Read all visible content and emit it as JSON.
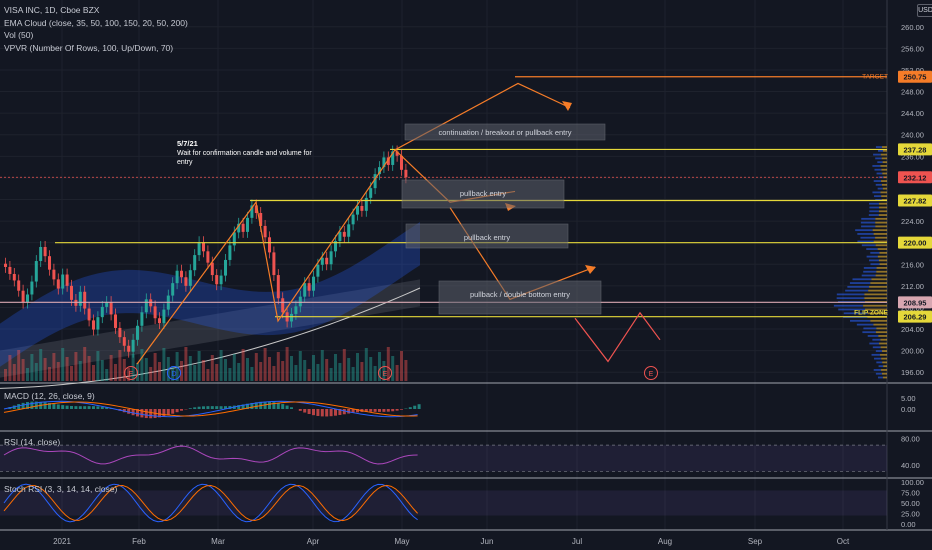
{
  "header": {
    "symbol_line": "VISA INC, 1D, Cboe BZX",
    "indicators": [
      "EMA Cloud (close, 35, 50, 100, 150, 20, 50, 200)",
      "Vol (50)",
      "VPVR (Number Of Rows, 100, Up/Down, 70)"
    ],
    "currency": "USD"
  },
  "annotation_note": {
    "line1": "5/7/21",
    "line2": "Wait for confirmation candle and volume for",
    "line3": "entry"
  },
  "zones": [
    {
      "label": "continuation / breakout or pullback entry"
    },
    {
      "label": "pullback entry"
    },
    {
      "label": "pullback entry"
    },
    {
      "label": "pullback / double bottom entry"
    }
  ],
  "earnings_markers": [
    "E",
    "D",
    "E",
    "E"
  ],
  "level_labels": {
    "target": "TARGET",
    "flip_zone": "FLIP ZONE"
  },
  "chart_data": [
    {
      "type": "candlestick",
      "title": "VISA INC, 1D, Cboe BZX",
      "x_labels": [
        "2021",
        "Feb",
        "Mar",
        "Apr",
        "May",
        "Jun",
        "Jul",
        "Aug",
        "Sep",
        "Oct"
      ],
      "y_ticks": [
        196,
        200,
        204,
        208,
        212,
        216,
        220,
        224,
        228,
        232,
        236,
        240,
        244,
        248,
        252,
        256,
        260
      ],
      "ylim": [
        192,
        264
      ],
      "price_levels": [
        {
          "value": 250.75,
          "label": "250.75",
          "name": "TARGET",
          "color": "#f57c28"
        },
        {
          "value": 237.28,
          "label": "237.28",
          "color": "#e5d83a"
        },
        {
          "value": 232.12,
          "label": "232.12",
          "color": "#ef5350"
        },
        {
          "value": 227.82,
          "label": "227.82",
          "color": "#e5d83a"
        },
        {
          "value": 220.0,
          "label": "220.00",
          "color": "#e5d83a"
        },
        {
          "value": 208.95,
          "label": "208.95",
          "color": "#d8a7b1"
        },
        {
          "value": 206.29,
          "label": "206.29",
          "name": "FLIP ZONE",
          "color": "#e5d83a"
        }
      ],
      "ohlc_path_close": [
        215.5,
        214.2,
        213.0,
        211.1,
        208.9,
        210.4,
        212.8,
        216.6,
        219.2,
        217.5,
        215.0,
        213.2,
        211.5,
        214.1,
        212.0,
        209.4,
        208.3,
        210.9,
        207.8,
        205.6,
        203.9,
        206.2,
        208.1,
        209.0,
        206.7,
        204.2,
        202.5,
        200.9,
        199.8,
        202.0,
        204.6,
        207.1,
        209.5,
        208.2,
        206.0,
        205.1,
        207.6,
        210.2,
        212.5,
        214.8,
        213.6,
        212.0,
        214.9,
        217.7,
        220.1,
        218.4,
        216.3,
        214.0,
        212.3,
        213.9,
        216.8,
        219.5,
        221.9,
        223.5,
        222.0,
        224.6,
        226.9,
        225.5,
        223.1,
        221.0,
        218.2,
        214.0,
        209.7,
        207.1,
        205.4,
        206.8,
        208.2,
        210.0,
        212.5,
        211.1,
        213.7,
        215.9,
        217.2,
        216.0,
        218.4,
        220.3,
        222.0,
        221.1,
        223.4,
        225.2,
        226.8,
        225.9,
        228.3,
        230.1,
        232.7,
        234.0,
        235.8,
        234.4,
        236.9,
        236.1,
        233.5,
        232.12
      ],
      "annotation_path_up": [
        [
          197.5,
          0
        ],
        [
          227.5,
          28
        ],
        [
          205.5,
          42
        ],
        [
          237.2,
          72
        ],
        [
          249.5,
          90
        ],
        [
          245.0,
          100
        ]
      ],
      "scenario_paths": [
        {
          "points": [
            [
              237.2,
              0
            ],
            [
              227.5,
              12
            ],
            [
              229.5,
              20
            ]
          ]
        },
        {
          "points": [
            [
              226.5,
              0
            ],
            [
              209.5,
              10
            ],
            [
              215.5,
              18
            ]
          ]
        },
        {
          "points": [
            [
              206.0,
              0
            ],
            [
              198.0,
              6
            ],
            [
              207.0,
              14
            ],
            [
              202.0,
              18
            ]
          ]
        }
      ],
      "volume_panel": {
        "title": "Vol (50)"
      },
      "sub_panels": [
        {
          "title": "MACD (12, 26, close, 9)",
          "y_ticks": [
            5.0,
            0.0
          ],
          "ylim": [
            -6,
            8
          ]
        },
        {
          "title": "RSI (14, close)",
          "y_ticks": [
            80.0,
            40.0
          ],
          "ylim": [
            20,
            90
          ]
        },
        {
          "title": "Stoch RSI (3, 3, 14, 14, close)",
          "y_ticks": [
            100.0,
            75.0,
            50.0,
            25.0,
            0.0
          ],
          "ylim": [
            -5,
            105
          ]
        }
      ]
    }
  ],
  "colors": {
    "background": "#131722",
    "grid": "#1e222d",
    "up": "#26a69a",
    "down": "#ef5350",
    "level": "#e5d83a",
    "target": "#f57c28",
    "arrow": "#f57c28",
    "scenario_down": "#ef5350",
    "ema_band": "#2962ff",
    "sma": "#c8c8c8"
  }
}
